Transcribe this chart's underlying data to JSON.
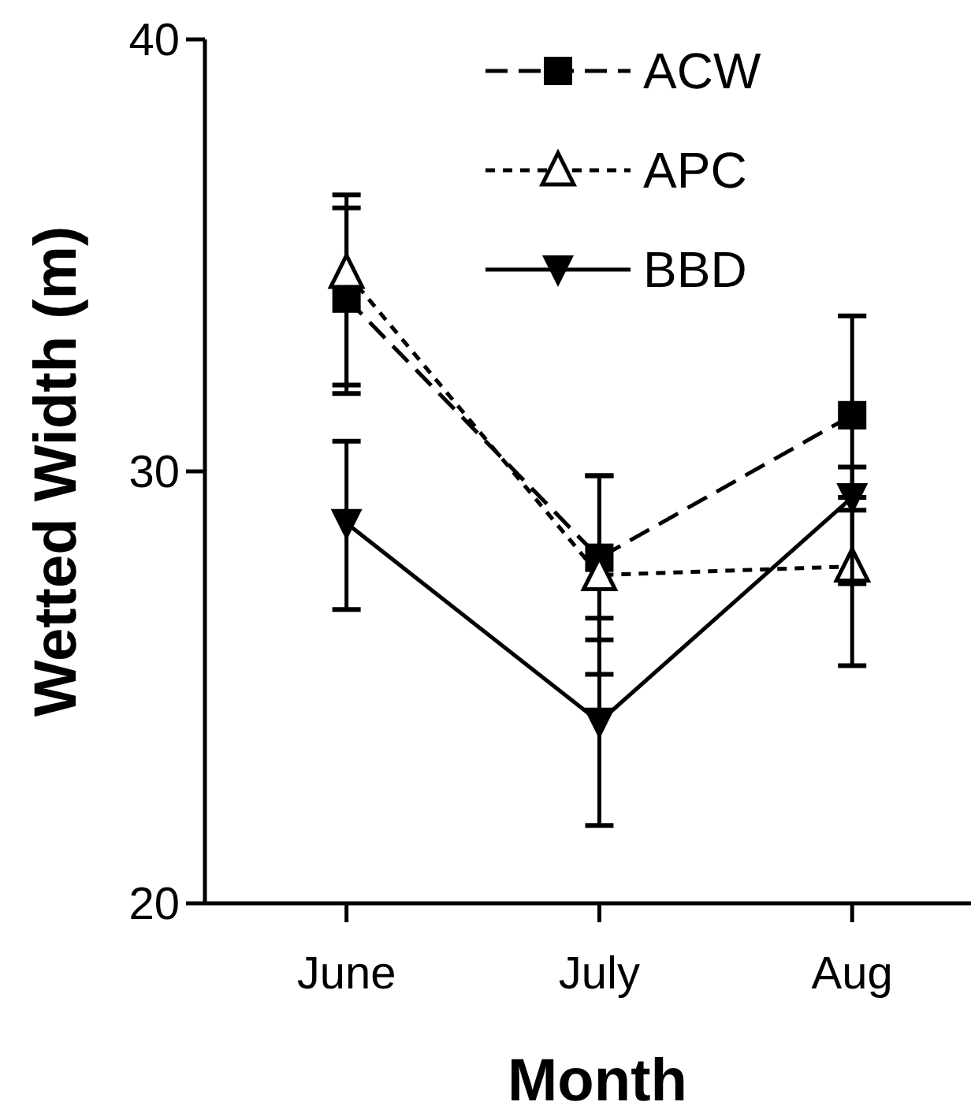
{
  "chart_data": {
    "type": "line",
    "xlabel": "Month",
    "ylabel": "Wetted Width (m)",
    "categories": [
      "June",
      "July",
      "Aug"
    ],
    "ylim": [
      20,
      40
    ],
    "yticks": [
      20,
      30,
      40
    ],
    "legend": "top right",
    "grid": false,
    "series": [
      {
        "name": "ACW",
        "color": "#000000",
        "marker": "square",
        "line_style": "dashed",
        "values": [
          34.0,
          28.0,
          31.3
        ],
        "errors": [
          [
            32.0,
            36.1
          ],
          [
            26.1,
            29.9
          ],
          [
            29.1,
            33.6
          ]
        ]
      },
      {
        "name": "APC",
        "color": "#000000",
        "marker": "triangle",
        "line_style": "dotted",
        "values": [
          34.6,
          27.6,
          27.8
        ],
        "errors": [
          [
            31.8,
            36.4
          ],
          [
            25.3,
            29.9
          ],
          [
            25.5,
            30.1
          ]
        ]
      },
      {
        "name": "BBD",
        "color": "#000000",
        "marker": "triangle-down",
        "line_style": "solid",
        "values": [
          28.8,
          24.2,
          29.4
        ],
        "errors": [
          [
            26.8,
            30.7
          ],
          [
            21.8,
            26.6
          ],
          [
            27.4,
            29.4
          ]
        ]
      }
    ]
  }
}
